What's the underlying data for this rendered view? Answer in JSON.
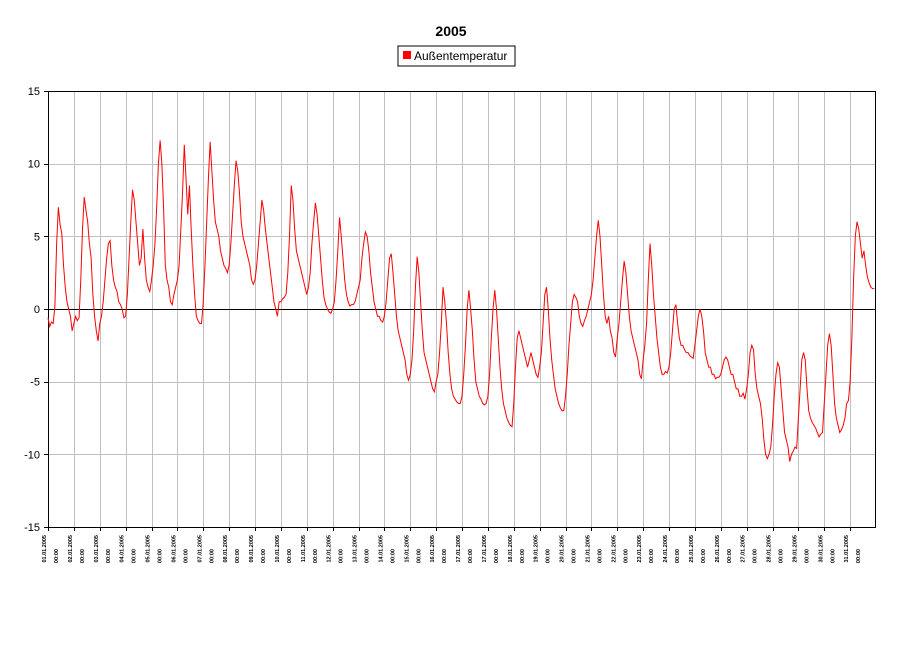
{
  "chart_data": {
    "type": "line",
    "title": "2005",
    "xlabel": "",
    "ylabel": "",
    "ylim": [
      -15,
      15
    ],
    "yticks": [
      -15,
      -10,
      -5,
      0,
      5,
      10,
      15
    ],
    "ytick_labels": [
      "-15",
      "-10",
      "-5",
      "0",
      "5",
      "10",
      "15"
    ],
    "grid": true,
    "legend_position": "top-center",
    "x_ticks": [
      {
        "date": "01.01.2005",
        "time": "00:00"
      },
      {
        "date": "02.01.2005",
        "time": "00:00"
      },
      {
        "date": "03.01.2005",
        "time": "00:00"
      },
      {
        "date": "04.01.2005",
        "time": "00:00"
      },
      {
        "date": "05.01.2005",
        "time": "00:00"
      },
      {
        "date": "06.01.2005",
        "time": "00:00"
      },
      {
        "date": "07.01.2005",
        "time": "00:00"
      },
      {
        "date": "08.01.2005",
        "time": "00:00"
      },
      {
        "date": "09.01.2005",
        "time": "00:00"
      },
      {
        "date": "10.01.2005",
        "time": "00:00"
      },
      {
        "date": "11.01.2005",
        "time": "00:00"
      },
      {
        "date": "12.01.2005",
        "time": "00:00"
      },
      {
        "date": "13.01.2005",
        "time": "00:00"
      },
      {
        "date": "14.01.2005",
        "time": "00:00"
      },
      {
        "date": "15.01.2005",
        "time": "00:00"
      },
      {
        "date": "16.01.2005",
        "time": "00:00"
      },
      {
        "date": "17.01.2005",
        "time": "00:00"
      },
      {
        "date": "17.01.2005",
        "time": "00:00"
      },
      {
        "date": "18.01.2005",
        "time": "00:00"
      },
      {
        "date": "19.01.2005",
        "time": "00:00"
      },
      {
        "date": "20.01.2005",
        "time": "00:00"
      },
      {
        "date": "21.01.2005",
        "time": "00:00"
      },
      {
        "date": "22.01.2005",
        "time": "00:00"
      },
      {
        "date": "23.01.2005",
        "time": "00:00"
      },
      {
        "date": "24.01.2005",
        "time": "00:00"
      },
      {
        "date": "25.01.2005",
        "time": "00:00"
      },
      {
        "date": "26.01.2005",
        "time": "00:00"
      },
      {
        "date": "27.01.2005",
        "time": "00:00"
      },
      {
        "date": "28.01.2005",
        "time": "00:00"
      },
      {
        "date": "29.01.2005",
        "time": "00:00"
      },
      {
        "date": "30.01.2005",
        "time": "00:00"
      },
      {
        "date": "31.01.2005",
        "time": "00:00"
      }
    ],
    "series": [
      {
        "name": "Außentemperatur",
        "color": "#ff0000",
        "x_days": [
          0,
          0.1,
          0.2,
          0.3,
          0.4,
          0.5,
          0.55,
          0.6,
          0.65,
          0.7,
          0.75,
          0.8,
          0.85,
          0.9,
          0.95,
          1.0,
          1.05,
          1.1,
          1.2,
          1.3,
          1.35,
          1.4,
          1.45,
          1.5,
          1.55,
          1.6,
          1.65,
          1.7,
          1.75,
          1.8,
          1.85,
          1.9,
          1.95,
          2.0,
          2.05,
          2.1,
          2.2,
          2.3,
          2.35,
          2.4,
          2.45,
          2.5,
          2.55,
          2.6,
          2.65,
          2.7,
          2.75,
          2.8,
          2.85,
          2.9,
          2.95,
          3.0,
          3.05,
          3.1,
          3.2,
          3.3,
          3.35,
          3.4,
          3.45,
          3.5,
          3.55,
          3.6,
          3.65,
          3.7,
          3.75,
          3.8,
          3.85,
          3.9,
          3.95,
          4.0,
          4.05,
          4.1,
          4.2,
          4.3,
          4.35,
          4.4,
          4.45,
          4.5,
          4.55,
          4.6,
          4.65,
          4.7,
          4.75,
          4.8,
          4.85,
          4.9,
          4.95,
          5.0,
          5.05,
          5.1,
          5.2,
          5.3,
          5.35,
          5.4,
          5.45,
          5.5,
          5.55,
          5.6,
          5.65,
          5.7,
          5.75,
          5.8,
          5.85,
          5.9,
          5.95,
          6.0,
          6.05,
          6.1,
          6.2,
          6.3,
          6.35,
          6.4,
          6.45,
          6.5,
          6.55,
          6.6,
          6.65,
          6.7,
          6.75,
          6.8,
          6.85,
          6.9,
          6.95,
          7.0,
          7.05,
          7.1,
          7.2,
          7.3,
          7.35,
          7.4,
          7.45,
          7.5,
          7.55,
          7.6,
          7.65,
          7.7,
          7.75,
          7.8,
          7.85,
          7.9,
          7.95,
          8.0,
          8.05,
          8.1,
          8.2,
          8.3,
          8.35,
          8.4,
          8.45,
          8.5,
          8.55,
          8.6,
          8.65,
          8.7,
          8.75,
          8.8,
          8.85,
          8.9,
          8.95,
          9.0,
          9.05,
          9.1,
          9.2,
          9.3,
          9.35,
          9.4,
          9.45,
          9.5,
          9.55,
          9.6,
          9.65,
          9.7,
          9.75,
          9.8,
          9.85,
          9.9,
          9.95,
          10.0,
          10.05,
          10.1,
          10.2,
          10.3,
          10.35,
          10.4,
          10.45,
          10.5,
          10.55,
          10.6,
          10.65,
          10.7,
          10.75,
          10.8,
          10.85,
          10.9,
          10.95,
          11.0,
          11.05,
          11.1,
          11.2,
          11.3,
          11.35,
          11.4,
          11.45,
          11.5,
          11.55,
          11.6,
          11.65,
          11.7,
          11.75,
          11.8,
          11.85,
          11.9,
          11.95,
          12.0,
          12.05,
          12.1,
          12.2,
          12.3,
          12.35,
          12.4,
          12.45,
          12.5,
          12.55,
          12.6,
          12.65,
          12.7,
          12.75,
          12.8,
          12.85,
          12.9,
          12.95,
          13.0,
          13.05,
          13.1,
          13.2,
          13.3,
          13.35,
          13.4,
          13.45,
          13.5,
          13.55,
          13.6,
          13.65,
          13.7,
          13.75,
          13.8,
          13.85,
          13.9,
          13.95,
          14.0,
          14.05,
          14.1,
          14.2,
          14.3,
          14.35,
          14.4,
          14.45,
          14.5,
          14.55,
          14.6,
          14.65,
          14.7,
          14.75,
          14.8,
          14.85,
          14.9,
          14.95,
          15.0,
          15.05,
          15.1,
          15.2,
          15.3,
          15.35,
          15.4,
          15.45,
          15.5,
          15.55,
          15.6,
          15.65,
          15.7,
          15.75,
          15.8,
          15.85,
          15.9,
          15.95,
          16.0,
          16.05,
          16.1,
          16.2,
          16.3,
          16.35,
          16.4,
          16.45,
          16.5,
          16.55,
          16.6,
          16.65,
          16.7,
          16.75,
          16.8,
          16.85,
          16.9,
          16.95,
          17.0,
          17.05,
          17.1,
          17.2,
          17.3,
          17.35,
          17.4,
          17.45,
          17.5,
          17.55,
          17.6,
          17.65,
          17.7,
          17.75,
          17.8,
          17.85,
          17.9,
          17.95,
          18.0,
          18.05,
          18.1,
          18.2,
          18.3,
          18.35,
          18.4,
          18.45,
          18.5,
          18.55,
          18.6,
          18.65,
          18.7,
          18.75,
          18.8,
          18.85,
          18.9,
          18.95,
          19.0,
          19.05,
          19.1,
          19.2,
          19.3,
          19.35,
          19.4,
          19.45,
          19.5,
          19.55,
          19.6,
          19.65,
          19.7,
          19.75,
          19.8,
          19.85,
          19.9,
          19.95,
          20.0,
          20.05,
          20.1,
          20.2,
          20.3,
          20.35,
          20.4,
          20.45,
          20.5,
          20.55,
          20.6,
          20.65,
          20.7,
          20.75,
          20.8,
          20.85,
          20.9,
          20.95,
          21.0,
          21.05,
          21.1,
          21.2,
          21.3,
          21.35,
          21.4,
          21.45,
          21.5,
          21.55,
          21.6,
          21.65,
          21.7,
          21.75,
          21.8,
          21.85,
          21.9,
          21.95,
          22.0,
          22.05,
          22.1,
          22.2,
          22.3,
          22.35,
          22.4,
          22.45,
          22.5,
          22.55,
          22.6,
          22.65,
          22.7,
          22.75,
          22.8,
          22.85,
          22.9,
          22.95,
          23.0,
          23.05,
          23.1,
          23.2,
          23.3,
          23.35,
          23.4,
          23.45,
          23.5,
          23.55,
          23.6,
          23.65,
          23.7,
          23.75,
          23.8,
          23.85,
          23.9,
          23.95,
          24.0,
          24.05,
          24.1,
          24.2,
          24.3,
          24.35,
          24.4,
          24.45,
          24.5,
          24.55,
          24.6,
          24.65,
          24.7,
          24.75,
          24.8,
          24.85,
          24.9,
          24.95,
          25.0,
          25.05,
          25.1,
          25.2,
          25.3,
          25.35,
          25.4,
          25.45,
          25.5,
          25.55,
          25.6,
          25.65,
          25.7,
          25.75,
          25.8,
          25.85,
          25.9,
          25.95,
          26.0,
          26.05,
          26.1,
          26.2,
          26.3,
          26.35,
          26.4,
          26.45,
          26.5,
          26.55,
          26.6,
          26.65,
          26.7,
          26.75,
          26.8,
          26.85,
          26.9,
          26.95,
          27.0,
          27.05,
          27.1,
          27.2,
          27.3,
          27.35,
          27.4,
          27.45,
          27.5,
          27.55,
          27.6,
          27.65,
          27.7,
          27.75,
          27.8,
          27.85,
          27.9,
          27.95,
          28.0,
          28.05,
          28.1,
          28.2,
          28.3,
          28.35,
          28.4,
          28.45,
          28.5,
          28.55,
          28.6,
          28.65,
          28.7,
          28.75,
          28.8,
          28.85,
          28.9,
          28.95,
          29.0,
          29.05,
          29.1,
          29.2,
          29.3,
          29.35,
          29.4,
          29.45,
          29.5,
          29.55,
          29.6,
          29.65,
          29.7,
          29.75,
          29.8,
          29.85,
          29.9,
          29.95,
          30.0,
          30.05,
          30.1,
          30.2,
          30.3,
          30.35,
          30.4,
          30.45,
          30.5,
          30.55,
          30.6,
          30.65,
          30.7,
          30.75,
          30.8,
          30.85,
          30.9,
          30.95,
          31.0,
          31.05,
          31.1,
          31.2,
          31.3,
          31.35,
          31.4,
          31.45,
          31.5,
          31.55,
          31.6,
          31.65,
          31.7,
          31.75,
          31.8,
          31.85,
          31.9,
          31.95
        ],
        "values": []
      }
    ],
    "daily_profile": [
      [
        -0.6,
        -1.2,
        -0.9,
        -1.0,
        0.2,
        4.5,
        7.0,
        5.8,
        5.2,
        3.0,
        1.5,
        0.5,
        0.0,
        -0.5,
        -1.5
      ],
      [
        -1.0,
        -0.5,
        -0.8,
        -0.6,
        2.0,
        5.5,
        7.7,
        6.8,
        6.0,
        4.5,
        3.5,
        1.0,
        -0.5,
        -1.5,
        -2.2
      ],
      [
        -1.0,
        -0.5,
        0.5,
        2.0,
        3.5,
        4.5,
        4.7,
        3.0,
        2.0,
        1.5,
        1.2,
        0.5,
        0.3,
        0.0,
        -0.6
      ],
      [
        -0.5,
        1.0,
        3.5,
        6.0,
        8.2,
        7.5,
        6.0,
        4.5,
        3.0,
        3.5,
        5.5,
        3.5,
        2.0,
        1.5,
        1.2
      ],
      [
        2.0,
        3.0,
        4.5,
        7.0,
        10.0,
        11.6,
        10.0,
        7.0,
        3.0,
        2.0,
        1.5,
        0.5,
        0.3,
        1.0,
        1.5
      ],
      [
        2.0,
        3.0,
        5.5,
        8.0,
        11.3,
        9.0,
        6.5,
        8.5,
        5.5,
        3.0,
        1.0,
        -0.5,
        -0.8,
        -1.0,
        -1.0
      ],
      [
        0.5,
        3.0,
        6.0,
        9.0,
        11.5,
        9.5,
        7.5,
        6.0,
        5.5,
        5.0,
        4.0,
        3.5,
        3.0,
        2.8,
        2.5
      ],
      [
        3.0,
        4.5,
        6.5,
        8.5,
        10.2,
        9.5,
        8.0,
        6.0,
        5.0,
        4.5,
        4.0,
        3.5,
        3.0,
        2.0,
        1.7
      ],
      [
        2.0,
        3.0,
        4.5,
        6.0,
        7.5,
        6.8,
        5.5,
        4.5,
        3.5,
        2.5,
        1.5,
        0.5,
        0.0,
        -0.5,
        0.5
      ],
      [
        0.5,
        0.7,
        0.8,
        1.0,
        2.5,
        5.0,
        8.5,
        7.5,
        5.5,
        4.0,
        3.5,
        3.0,
        2.5,
        2.0,
        1.5
      ],
      [
        1.0,
        1.5,
        2.5,
        4.5,
        6.0,
        7.3,
        6.5,
        5.0,
        3.5,
        2.0,
        0.8,
        0.3,
        0.0,
        -0.2,
        -0.3
      ],
      [
        0.0,
        0.5,
        2.0,
        4.0,
        6.3,
        5.0,
        3.5,
        2.0,
        1.0,
        0.5,
        0.2,
        0.3,
        0.3,
        0.5,
        1.0
      ],
      [
        1.5,
        2.0,
        3.5,
        4.5,
        5.3,
        5.0,
        4.0,
        2.5,
        1.5,
        0.5,
        0.0,
        -0.5,
        -0.5,
        -0.8,
        -0.9
      ],
      [
        -0.5,
        0.5,
        2.0,
        3.5,
        3.8,
        2.5,
        1.0,
        -0.5,
        -1.5,
        -2.0,
        -2.5,
        -3.0,
        -3.5,
        -4.5,
        -4.9
      ],
      [
        -4.5,
        -3.5,
        -1.5,
        1.5,
        3.6,
        2.5,
        0.5,
        -1.5,
        -3.0,
        -3.5,
        -4.0,
        -4.5,
        -5.0,
        -5.5,
        -5.7
      ],
      [
        -5.0,
        -4.5,
        -3.0,
        -1.0,
        1.5,
        0.5,
        -1.0,
        -3.0,
        -4.5,
        -5.5,
        -6.0,
        -6.2,
        -6.4,
        -6.5,
        -6.5
      ],
      [
        -6.0,
        -4.5,
        -2.5,
        0.0,
        1.3,
        0.0,
        -1.5,
        -3.5,
        -5.0,
        -5.5,
        -6.0,
        -6.2,
        -6.5,
        -6.6,
        -6.5
      ],
      [
        -6.0,
        -4.5,
        -2.0,
        0.0,
        1.3,
        0.0,
        -2.0,
        -4.0,
        -5.5,
        -6.5,
        -7.0,
        -7.5,
        -7.8,
        -8.0,
        -8.1
      ],
      [
        -6.5,
        -4.0,
        -2.0,
        -1.5,
        -2.0,
        -2.5,
        -3.0,
        -3.5,
        -4.0,
        -3.5,
        -3.0,
        -3.5,
        -4.0,
        -4.5,
        -4.7
      ],
      [
        -4.0,
        -3.0,
        -1.0,
        1.0,
        1.5,
        0.0,
        -2.0,
        -3.5,
        -4.5,
        -5.5,
        -6.0,
        -6.5,
        -6.8,
        -7.0,
        -7.0
      ],
      [
        -6.0,
        -4.5,
        -2.5,
        -1.0,
        0.5,
        1.0,
        0.8,
        0.5,
        -0.5,
        -1.0,
        -1.2,
        -0.8,
        -0.5,
        0.0,
        0.5
      ],
      [
        1.0,
        2.0,
        3.5,
        5.0,
        6.1,
        5.0,
        3.0,
        1.0,
        -0.5,
        -1.0,
        -0.5,
        -1.5,
        -2.0,
        -3.0,
        -3.3
      ],
      [
        -2.0,
        -1.0,
        0.5,
        2.0,
        3.3,
        2.5,
        1.0,
        -0.5,
        -1.5,
        -2.0,
        -2.5,
        -3.0,
        -3.5,
        -4.5,
        -4.8
      ],
      [
        -3.5,
        -2.5,
        -1.0,
        2.0,
        4.5,
        3.0,
        1.0,
        -0.5,
        -2.0,
        -3.0,
        -4.0,
        -4.5,
        -4.5,
        -4.3,
        -4.4
      ],
      [
        -4.0,
        -3.0,
        -1.5,
        0.0,
        0.3,
        -1.0,
        -2.0,
        -2.5,
        -2.5,
        -2.8,
        -3.0,
        -3.0,
        -3.2,
        -3.3,
        -3.4
      ],
      [
        -2.5,
        -1.5,
        -0.5,
        0.0,
        -0.5,
        -1.5,
        -3.0,
        -3.5,
        -4.0,
        -4.0,
        -4.5,
        -4.5,
        -4.8,
        -4.7,
        -4.7
      ],
      [
        -4.5,
        -4.0,
        -3.5,
        -3.3,
        -3.5,
        -4.0,
        -4.5,
        -4.5,
        -5.0,
        -5.5,
        -5.5,
        -6.0,
        -6.0,
        -5.8,
        -6.2
      ],
      [
        -5.5,
        -4.5,
        -3.0,
        -2.5,
        -2.8,
        -4.5,
        -5.5,
        -6.0,
        -6.5,
        -7.5,
        -9.0,
        -10.0,
        -10.3,
        -10.0,
        -9.5
      ],
      [
        -8.0,
        -6.0,
        -4.5,
        -3.7,
        -4.0,
        -5.5,
        -7.0,
        -8.5,
        -9.0,
        -9.5,
        -10.5,
        -10.0,
        -9.8,
        -9.5,
        -9.6
      ],
      [
        -7.5,
        -5.5,
        -3.5,
        -3.0,
        -3.5,
        -5.5,
        -7.0,
        -7.5,
        -7.8,
        -8.0,
        -8.2,
        -8.5,
        -8.8,
        -8.6,
        -8.5
      ],
      [
        -6.5,
        -4.5,
        -2.5,
        -1.7,
        -2.5,
        -4.5,
        -6.5,
        -7.5,
        -8.0,
        -8.5,
        -8.3,
        -8.0,
        -7.5,
        -6.5,
        -6.3
      ],
      [
        -5.0,
        -2.0,
        2.0,
        5.0,
        6.0,
        5.5,
        4.5,
        3.5,
        4.0,
        3.0,
        2.2,
        1.8,
        1.5,
        1.4,
        1.4
      ]
    ]
  }
}
